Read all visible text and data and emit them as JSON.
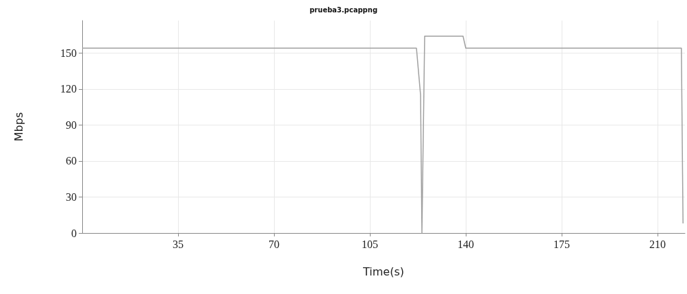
{
  "chart_data": {
    "type": "line",
    "title": "prueba3.pcappng",
    "xlabel": "Time(s)",
    "ylabel": "Mbps",
    "x": [
      0,
      122,
      123.5,
      124,
      125,
      139,
      140,
      218.7,
      219.3
    ],
    "series": [
      {
        "color": "#a0a0a0",
        "values": [
          154,
          154,
          115,
          0,
          164,
          164,
          154,
          154,
          8
        ]
      }
    ],
    "xlim": [
      0,
      220
    ],
    "xticks": [
      35,
      70,
      105,
      140,
      175,
      210
    ],
    "ylim": [
      0,
      177
    ],
    "yticks": [
      0,
      30,
      60,
      90,
      120,
      150
    ],
    "grid": true,
    "marker": "none",
    "line_style": "solid"
  }
}
